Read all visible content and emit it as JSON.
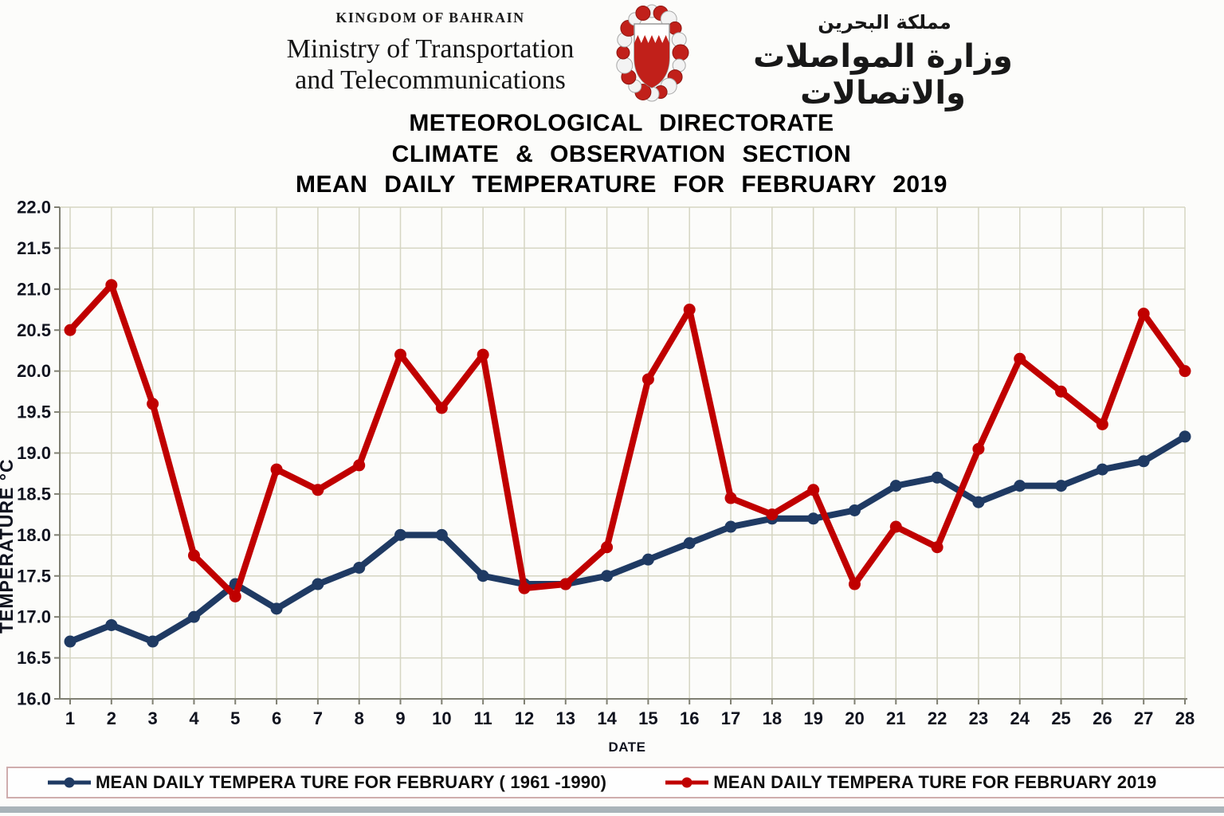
{
  "header": {
    "kingdom": "KINGDOM OF BAHRAIN",
    "ministry_line1": "Ministry of Transportation",
    "ministry_line2": "and Telecommunications",
    "arabic_kingdom": "مملكة البحرين",
    "arabic_ministry": "وزارة المواصلات والاتصالات",
    "emblem_icon": "bahrain-coat-of-arms"
  },
  "titles": [
    "METEOROLOGICAL DIRECTORATE",
    "CLIMATE & OBSERVATION SECTION",
    "MEAN DAILY TEMPERATURE FOR FEBRUARY 2019"
  ],
  "chart_data": {
    "type": "line",
    "x": [
      1,
      2,
      3,
      4,
      5,
      6,
      7,
      8,
      9,
      10,
      11,
      12,
      13,
      14,
      15,
      16,
      17,
      18,
      19,
      20,
      21,
      22,
      23,
      24,
      25,
      26,
      27,
      28
    ],
    "xlabel": "DATE",
    "ylabel": "TEMPERATURE °C",
    "ylim": [
      16.0,
      22.0
    ],
    "ytick_step": 0.5,
    "grid": true,
    "legend_position": "bottom",
    "series": [
      {
        "name": "MEAN DAILY TEMPERA TURE FOR FEBRUARY ( 1961 -1990)",
        "color": "#1f3a63",
        "values": [
          16.7,
          16.9,
          16.7,
          17.0,
          17.4,
          17.1,
          17.4,
          17.6,
          18.0,
          18.0,
          17.5,
          17.4,
          17.4,
          17.5,
          17.7,
          17.9,
          18.1,
          18.2,
          18.2,
          18.3,
          18.6,
          18.7,
          18.4,
          18.6,
          18.6,
          18.8,
          18.9,
          19.2
        ]
      },
      {
        "name": "MEAN DAILY TEMPERA TURE FOR FEBRUARY 2019",
        "color": "#c00000",
        "values": [
          20.5,
          21.05,
          19.6,
          17.75,
          17.25,
          18.8,
          18.55,
          18.85,
          20.2,
          19.55,
          20.2,
          17.35,
          17.4,
          17.85,
          19.9,
          20.75,
          18.45,
          18.25,
          18.55,
          17.4,
          18.1,
          17.85,
          19.05,
          20.15,
          19.75,
          19.35,
          20.7,
          20.0
        ]
      }
    ]
  },
  "colors": {
    "gridline": "#d5d5c2",
    "axis": "#7f7f72",
    "tick_label": "#10131f",
    "legend_border": "#cfadad",
    "bottom_strip": "#a9b3b9",
    "emblem_red": "#c1201a"
  }
}
